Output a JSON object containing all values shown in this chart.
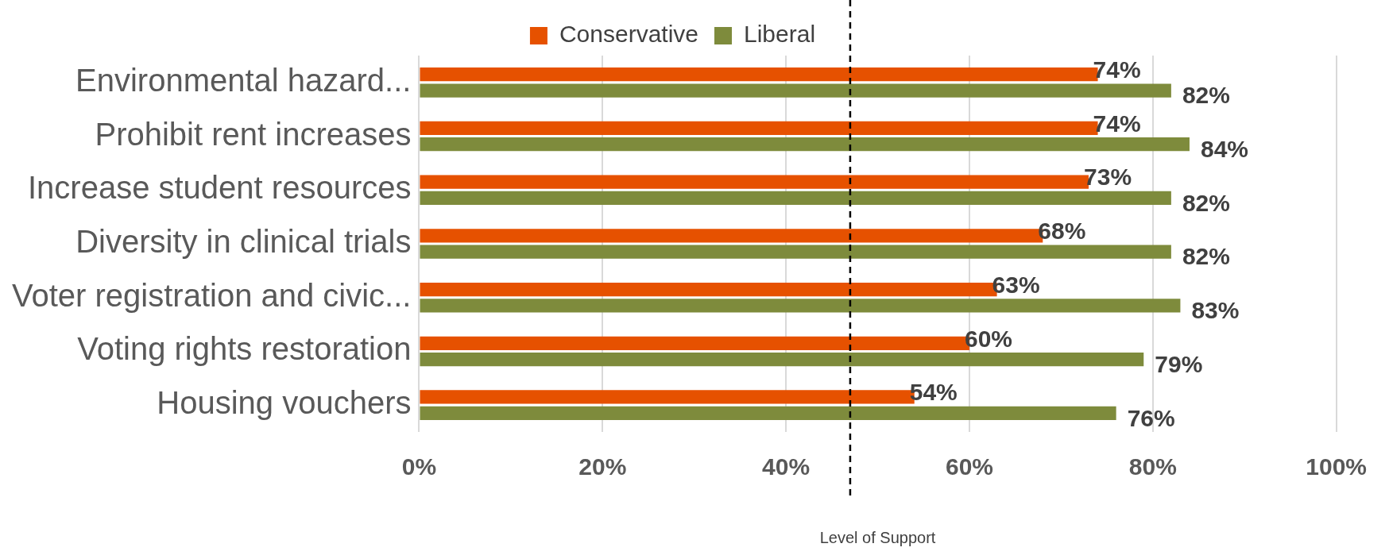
{
  "chart_data": {
    "type": "bar",
    "orientation": "horizontal",
    "xlabel": "Level of Support",
    "categories": [
      "Environmental hazard...",
      "Prohibit rent increases",
      "Increase student resources",
      "Diversity in clinical trials",
      "Voter registration and civic...",
      "Voting rights restoration",
      "Housing vouchers"
    ],
    "series": [
      {
        "name": "Conservative",
        "color": "#e65100",
        "values": [
          74,
          74,
          73,
          68,
          63,
          60,
          54
        ],
        "value_labels": [
          "74%",
          "74%",
          "73%",
          "68%",
          "63%",
          "60%",
          "54%"
        ]
      },
      {
        "name": "Liberal",
        "color": "#7e8b3c",
        "values": [
          82,
          84,
          82,
          82,
          83,
          79,
          76
        ],
        "value_labels": [
          "82%",
          "84%",
          "82%",
          "82%",
          "83%",
          "79%",
          "76%"
        ]
      }
    ],
    "xlim": [
      0,
      100
    ],
    "xticks": [
      {
        "value": 0,
        "label": "0%"
      },
      {
        "value": 20,
        "label": "20%"
      },
      {
        "value": 40,
        "label": "40%"
      },
      {
        "value": 60,
        "label": "60%"
      },
      {
        "value": 80,
        "label": "80%"
      },
      {
        "value": 100,
        "label": "100%"
      }
    ],
    "ref_lines": [
      {
        "axis": "x",
        "value": 47,
        "color": "#000000",
        "line_style": "dashed"
      }
    ],
    "grid": "x",
    "legend": "top"
  }
}
